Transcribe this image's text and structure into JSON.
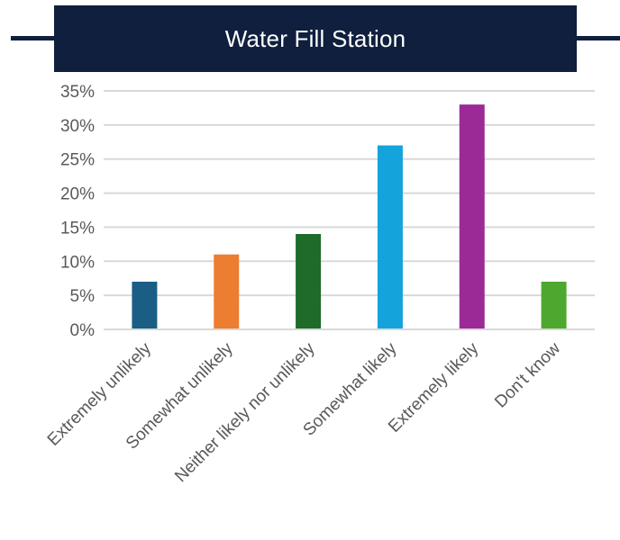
{
  "chart_data": {
    "type": "bar",
    "title": "Water Fill Station",
    "categories": [
      "Extremely unlikely",
      "Somewhat unlikely",
      "Neither likely nor unlikely",
      "Somewhat likely",
      "Extremely likely",
      "Don't know"
    ],
    "values": [
      7,
      11,
      14,
      27,
      33,
      7
    ],
    "colors": [
      "#1a5e85",
      "#ed7d31",
      "#1e6b2a",
      "#14a3db",
      "#9b2a96",
      "#4ea72e"
    ],
    "ylim": [
      0,
      35
    ],
    "yticks": [
      "0%",
      "5%",
      "10%",
      "15%",
      "20%",
      "25%",
      "30%",
      "35%"
    ],
    "grid": true,
    "xlabel": "",
    "ylabel": ""
  }
}
